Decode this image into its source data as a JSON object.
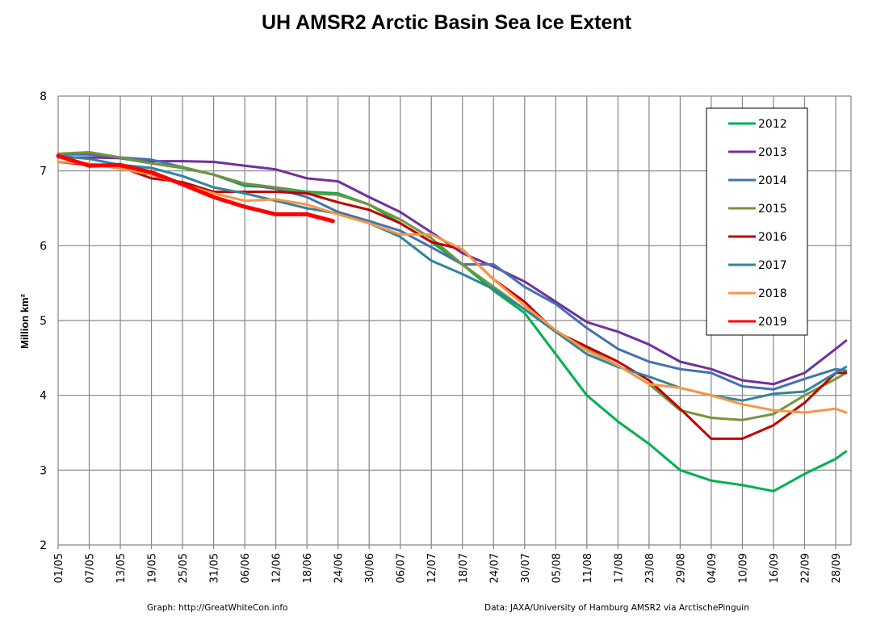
{
  "chart_data": {
    "type": "line",
    "title": "UH AMSR2 Arctic Basin Sea Ice Extent",
    "xlabel": "",
    "ylabel": "Million km²",
    "ylim": [
      2,
      8
    ],
    "yticks": [
      2,
      3,
      4,
      5,
      6,
      7,
      8
    ],
    "grid": true,
    "legend_position": "top-right",
    "x_unit": "day offset from 01/05",
    "xlim": [
      0,
      153
    ],
    "xtick_days": [
      0,
      6,
      12,
      18,
      24,
      30,
      36,
      42,
      48,
      54,
      60,
      66,
      72,
      78,
      84,
      90,
      96,
      102,
      108,
      114,
      120,
      126,
      132,
      138,
      144,
      150
    ],
    "xtick_labels": [
      "01/05",
      "07/05",
      "13/05",
      "19/05",
      "25/05",
      "31/05",
      "06/06",
      "12/06",
      "18/06",
      "24/06",
      "30/06",
      "06/07",
      "12/07",
      "18/07",
      "24/07",
      "30/07",
      "05/08",
      "11/08",
      "17/08",
      "23/08",
      "29/08",
      "04/09",
      "10/09",
      "16/09",
      "22/09",
      "28/09"
    ],
    "x": [
      0,
      6,
      12,
      18,
      24,
      30,
      36,
      42,
      48,
      54,
      60,
      66,
      72,
      78,
      84,
      90,
      96,
      102,
      108,
      114,
      120,
      126,
      132,
      138,
      144,
      150,
      152
    ],
    "series": [
      {
        "name": "2012",
        "color": "#00b050",
        "width": 3,
        "values": [
          7.22,
          7.24,
          7.17,
          7.1,
          7.04,
          6.95,
          6.8,
          6.78,
          6.72,
          6.7,
          6.55,
          6.3,
          6.05,
          5.75,
          5.4,
          5.1,
          4.55,
          4.0,
          3.65,
          3.35,
          3.0,
          2.86,
          2.8,
          2.72,
          2.95,
          3.15,
          3.25
        ]
      },
      {
        "name": "2013",
        "color": "#7030a0",
        "width": 3,
        "values": [
          7.18,
          7.18,
          7.17,
          7.13,
          7.13,
          7.12,
          7.07,
          7.02,
          6.9,
          6.86,
          6.65,
          6.45,
          6.18,
          5.9,
          5.72,
          5.52,
          5.25,
          4.98,
          4.85,
          4.68,
          4.45,
          4.35,
          4.2,
          4.15,
          4.3,
          4.62,
          4.73
        ]
      },
      {
        "name": "2014",
        "color": "#4372b0",
        "width": 3,
        "values": [
          7.22,
          7.22,
          7.18,
          7.15,
          7.05,
          6.95,
          6.82,
          6.76,
          6.65,
          6.45,
          6.33,
          6.2,
          5.98,
          5.75,
          5.75,
          5.45,
          5.22,
          4.9,
          4.62,
          4.45,
          4.35,
          4.3,
          4.12,
          4.08,
          4.22,
          4.35,
          4.33
        ]
      },
      {
        "name": "2015",
        "color": "#77933c",
        "width": 3,
        "values": [
          7.23,
          7.25,
          7.18,
          7.1,
          7.05,
          6.95,
          6.83,
          6.78,
          6.7,
          6.68,
          6.55,
          6.35,
          6.1,
          5.75,
          5.45,
          5.15,
          4.85,
          4.62,
          4.4,
          4.15,
          3.8,
          3.7,
          3.67,
          3.75,
          4.0,
          4.22,
          4.3
        ]
      },
      {
        "name": "2016",
        "color": "#c00000",
        "width": 3,
        "values": [
          7.12,
          7.08,
          7.05,
          6.9,
          6.85,
          6.72,
          6.72,
          6.72,
          6.7,
          6.58,
          6.48,
          6.3,
          6.05,
          5.95,
          5.55,
          5.25,
          4.85,
          4.65,
          4.45,
          4.2,
          3.82,
          3.42,
          3.42,
          3.6,
          3.9,
          4.3,
          4.3
        ]
      },
      {
        "name": "2017",
        "color": "#31849b",
        "width": 3,
        "values": [
          7.2,
          7.16,
          7.08,
          7.04,
          6.93,
          6.78,
          6.7,
          6.6,
          6.5,
          6.43,
          6.3,
          6.12,
          5.8,
          5.62,
          5.42,
          5.15,
          4.85,
          4.55,
          4.38,
          4.25,
          4.1,
          4.0,
          3.93,
          4.02,
          4.05,
          4.3,
          4.38
        ]
      },
      {
        "name": "2018",
        "color": "#f79646",
        "width": 3,
        "values": [
          7.12,
          7.1,
          7.03,
          6.95,
          6.82,
          6.7,
          6.6,
          6.62,
          6.55,
          6.42,
          6.3,
          6.15,
          6.15,
          5.95,
          5.55,
          5.2,
          4.87,
          4.6,
          4.4,
          4.15,
          4.1,
          4.0,
          3.88,
          3.8,
          3.77,
          3.82,
          3.77
        ]
      },
      {
        "name": "2019",
        "color": "#ff0000",
        "width": 5,
        "values": [
          7.2,
          7.07,
          7.08,
          6.98,
          6.82,
          6.65,
          6.52,
          6.42,
          6.42,
          6.33,
          null,
          null,
          null,
          null,
          null,
          null,
          null,
          null,
          null,
          null,
          null,
          null,
          null,
          null,
          null,
          null,
          null
        ],
        "last_point": {
          "x": 53,
          "value": 6.33
        }
      }
    ]
  },
  "footer": {
    "left": "Graph: http://GreatWhiteCon.info",
    "right": "Data: JAXA/University of Hamburg AMSR2 via  ArctischePinguin"
  }
}
